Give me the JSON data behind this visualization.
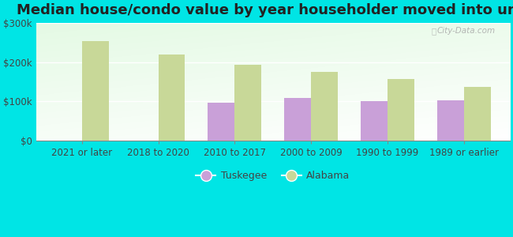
{
  "title": "Median house/condo value by year householder moved into unit",
  "categories": [
    "2021 or later",
    "2018 to 2020",
    "2010 to 2017",
    "2000 to 2009",
    "1990 to 1999",
    "1989 or earlier"
  ],
  "tuskegee_values": [
    0,
    0,
    97000,
    110000,
    100000,
    103000
  ],
  "alabama_values": [
    255000,
    220000,
    193000,
    175000,
    158000,
    138000
  ],
  "tuskegee_color": "#c9a0d8",
  "alabama_color": "#c8d898",
  "ylim": [
    0,
    300000
  ],
  "yticks": [
    0,
    100000,
    200000,
    300000
  ],
  "ytick_labels": [
    "$0",
    "$100k",
    "$200k",
    "$300k"
  ],
  "outer_bg_color": "#00e5e5",
  "title_fontsize": 13,
  "legend_labels": [
    "Tuskegee",
    "Alabama"
  ],
  "bar_width": 0.35,
  "watermark": "City-Data.com"
}
